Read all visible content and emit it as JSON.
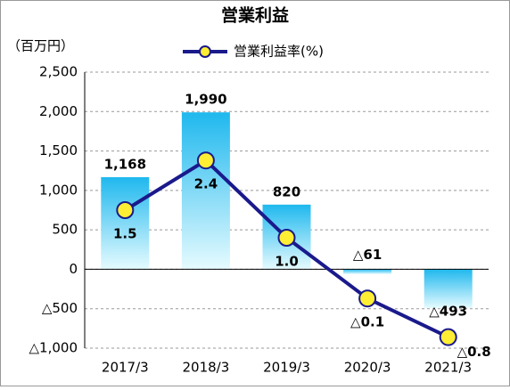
{
  "chart_data": {
    "type": "bar_line",
    "title": "営業利益",
    "y_label": "（百万円）",
    "categories": [
      "2017/3",
      "2018/3",
      "2019/3",
      "2020/3",
      "2021/3"
    ],
    "series": [
      {
        "name": "営業利益",
        "type": "bar",
        "values": [
          1168,
          1990,
          820,
          -61,
          -493
        ],
        "value_labels": [
          "1,168",
          "1,990",
          "820",
          "△61",
          "△493"
        ]
      },
      {
        "name": "営業利益率(%)",
        "type": "line",
        "axis": "y2",
        "color": "#1a1a8c",
        "marker_color": "#ffee33",
        "values": [
          1.5,
          2.4,
          1.0,
          -0.1,
          -0.8
        ],
        "value_labels": [
          "1.5",
          "2.4",
          "1.0",
          "△0.1",
          "△0.8"
        ]
      }
    ],
    "ylim": [
      -1000,
      2500
    ],
    "yticks": [
      {
        "value": -1000,
        "label": "△1,000"
      },
      {
        "value": -500,
        "label": "△500"
      },
      0,
      500,
      {
        "value": 1000,
        "label": "1,000"
      },
      {
        "value": 1500,
        "label": "1,500"
      },
      {
        "value": 2000,
        "label": "2,000"
      },
      {
        "value": 2500,
        "label": "2,500"
      }
    ],
    "y2lim": [
      -1,
      4
    ],
    "grid": true
  }
}
